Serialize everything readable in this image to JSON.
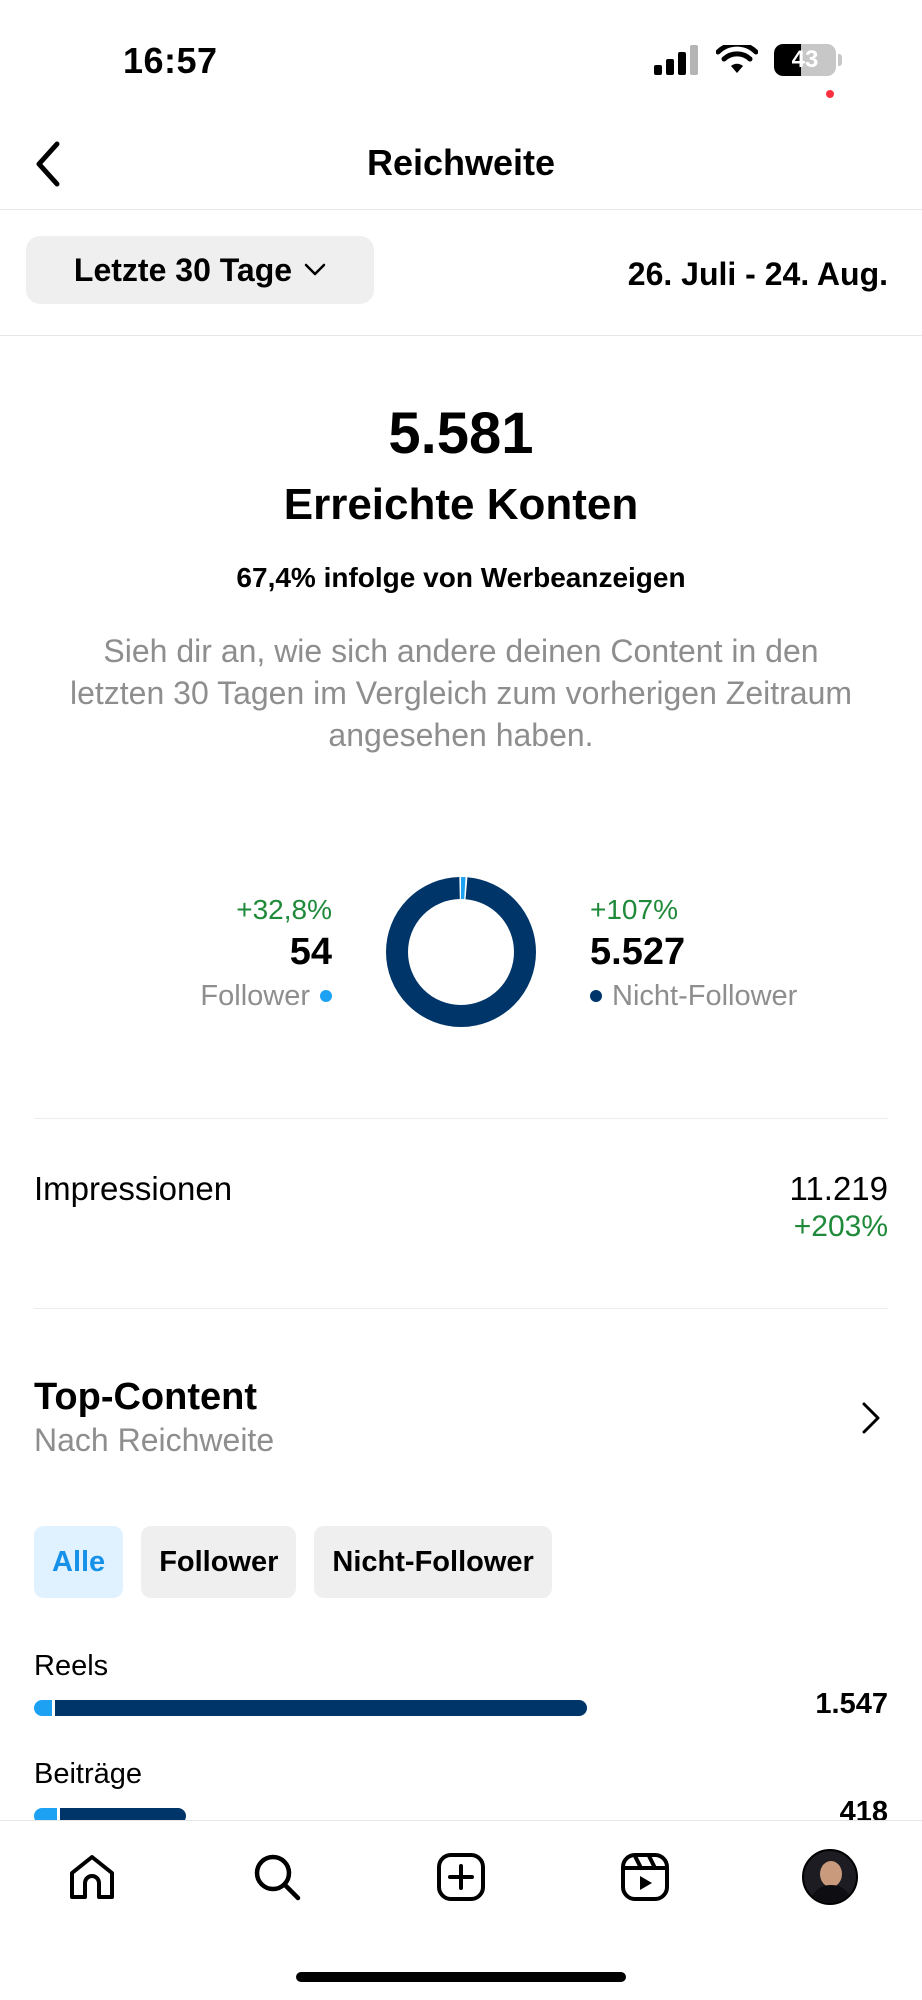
{
  "status": {
    "time": "16:57",
    "battery": "43",
    "battery_level": 0.43
  },
  "header": {
    "title": "Reichweite"
  },
  "range": {
    "selected": "Letzte 30 Tage",
    "dates": "26. Juli - 24. Aug."
  },
  "summary": {
    "value": "5.581",
    "label": "Erreichte Konten",
    "ads_share": "67,4% infolge von Werbeanzeigen",
    "description": "Sieh dir an, wie sich andere deinen Content in den letzten 30 Tagen im Vergleich zum vorherigen Zeitraum angesehen haben."
  },
  "split": {
    "followers": {
      "change": "+32,8%",
      "value": "54",
      "label": "Follower"
    },
    "non_followers": {
      "change": "+107%",
      "value": "5.527",
      "label": "Nicht-Follower"
    }
  },
  "impressions": {
    "label": "Impressionen",
    "value": "11.219",
    "change": "+203%"
  },
  "top_content": {
    "title": "Top-Content",
    "subtitle": "Nach Reichweite",
    "filters": [
      "Alle",
      "Follower",
      "Nicht-Follower"
    ],
    "active_filter": "Alle",
    "rows": [
      {
        "label": "Reels",
        "value": "1.547",
        "followers": 33,
        "non_followers": 1514
      },
      {
        "label": "Beiträge",
        "value": "418",
        "followers": 65,
        "non_followers": 353
      }
    ]
  },
  "colors": {
    "follower": "#1da1f2",
    "non_follower": "#003569",
    "positive_change": "#1e8a3a",
    "active_chip_bg": "#e0f1ff",
    "active_chip_text": "#1591ea"
  },
  "tabs": [
    "home-icon",
    "search-icon",
    "create-icon",
    "reels-icon",
    "profile-avatar"
  ]
}
